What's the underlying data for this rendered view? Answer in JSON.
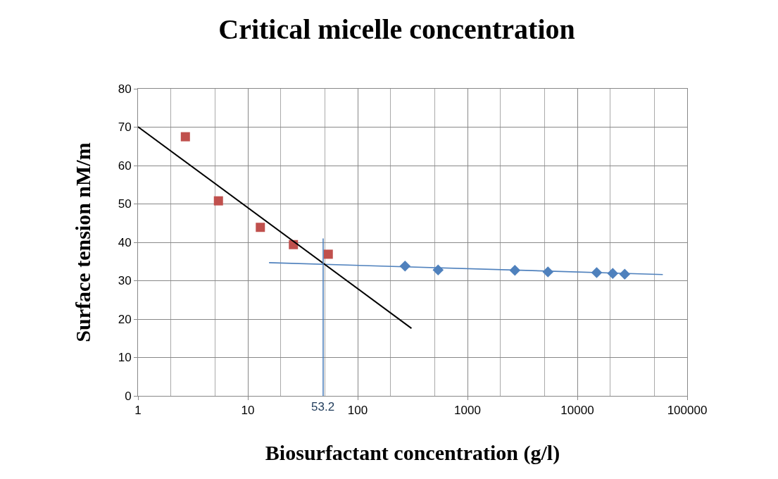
{
  "chart_data": {
    "type": "scatter",
    "title": "Critical micelle concentration",
    "xlabel": "Biosurfactant concentration (g/l)",
    "ylabel": "Surface tension nM/m",
    "log": "x",
    "grid": true,
    "xlim": [
      1,
      100000
    ],
    "xticks": [
      1,
      10,
      100,
      1000,
      10000,
      100000
    ],
    "ylim": [
      0,
      80
    ],
    "yticks": [
      0,
      10,
      20,
      30,
      40,
      50,
      60,
      70,
      80
    ],
    "series": [
      {
        "marker": "square",
        "color": "#c0504d",
        "x": [
          2.7,
          5.4,
          13,
          26,
          54
        ],
        "values": [
          67.5,
          50.8,
          43.9,
          39.4,
          36.9
        ]
      },
      {
        "marker": "diamond",
        "color": "#4f81bd",
        "x": [
          270,
          540,
          2700,
          5400,
          15000,
          21000,
          27000
        ],
        "values": [
          33.8,
          32.8,
          32.7,
          32.3,
          32.1,
          31.9,
          31.7
        ]
      },
      {
        "type": "line",
        "marker": "none",
        "color": "#4f81bd",
        "x": [
          15.6,
          60000
        ],
        "values": [
          34.7,
          31.6
        ]
      },
      {
        "type": "line",
        "marker": "none",
        "color": "#000000",
        "x": [
          1,
          309
        ],
        "values": [
          70.1,
          17.6
        ]
      },
      {
        "type": "line",
        "marker": "none",
        "color": "#4f81bd",
        "x": [
          48.5,
          48.5
        ],
        "values": [
          0,
          41
        ]
      }
    ],
    "annotations": [
      {
        "text": "53.2",
        "x": 48.5,
        "y": 0
      }
    ]
  }
}
